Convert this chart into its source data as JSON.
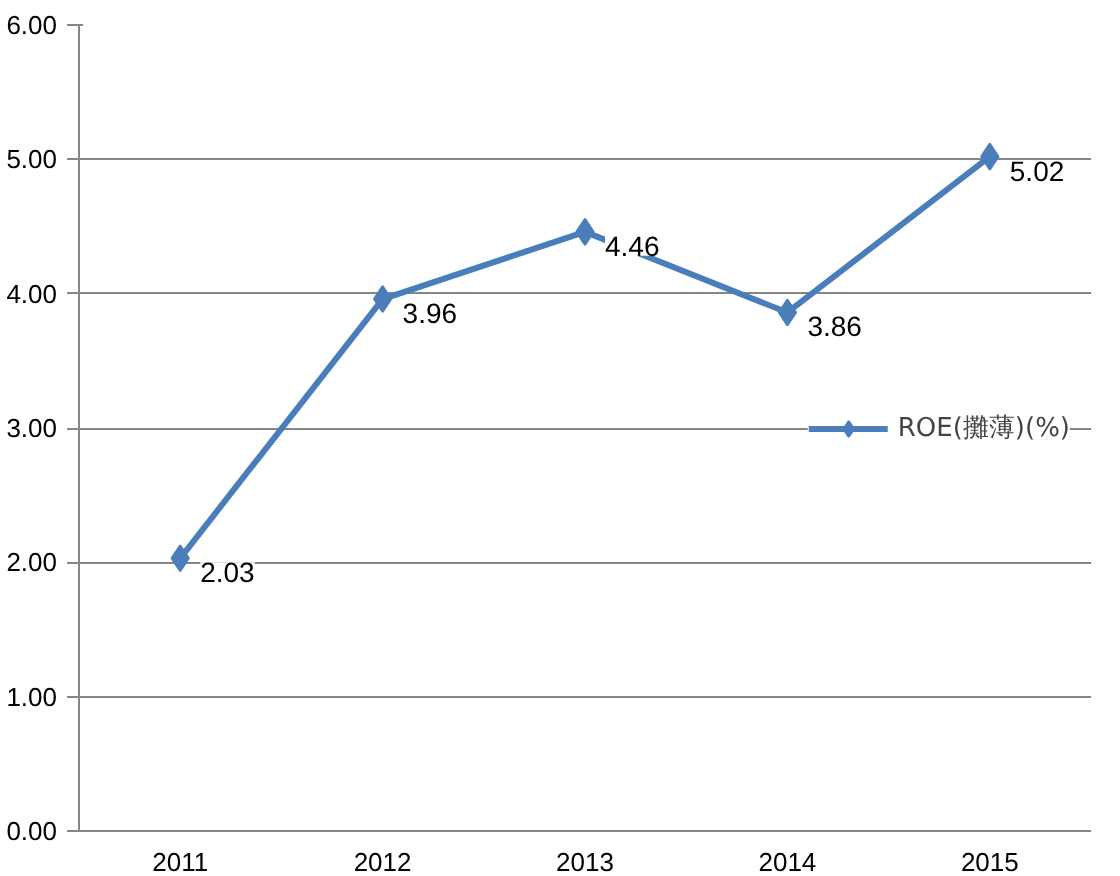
{
  "chart_data": {
    "type": "line",
    "categories": [
      "2011",
      "2012",
      "2013",
      "2014",
      "2015"
    ],
    "series": [
      {
        "name": "ROE(攤薄)(%)",
        "color": "#4a7ebb",
        "values": [
          2.03,
          3.96,
          4.46,
          3.86,
          5.02
        ]
      }
    ],
    "ylim": [
      0,
      6
    ],
    "yticks": [
      {
        "value": 0,
        "label": "0.00"
      },
      {
        "value": 1,
        "label": "1.00"
      },
      {
        "value": 2,
        "label": "2.00"
      },
      {
        "value": 3,
        "label": "3.00"
      },
      {
        "value": 4,
        "label": "4.00"
      },
      {
        "value": 5,
        "label": "5.00"
      },
      {
        "value": 6,
        "label": "6.00"
      }
    ],
    "grid": "y",
    "legend": "right",
    "marker": "diamond",
    "line_style": "solid",
    "data_labels": true
  }
}
